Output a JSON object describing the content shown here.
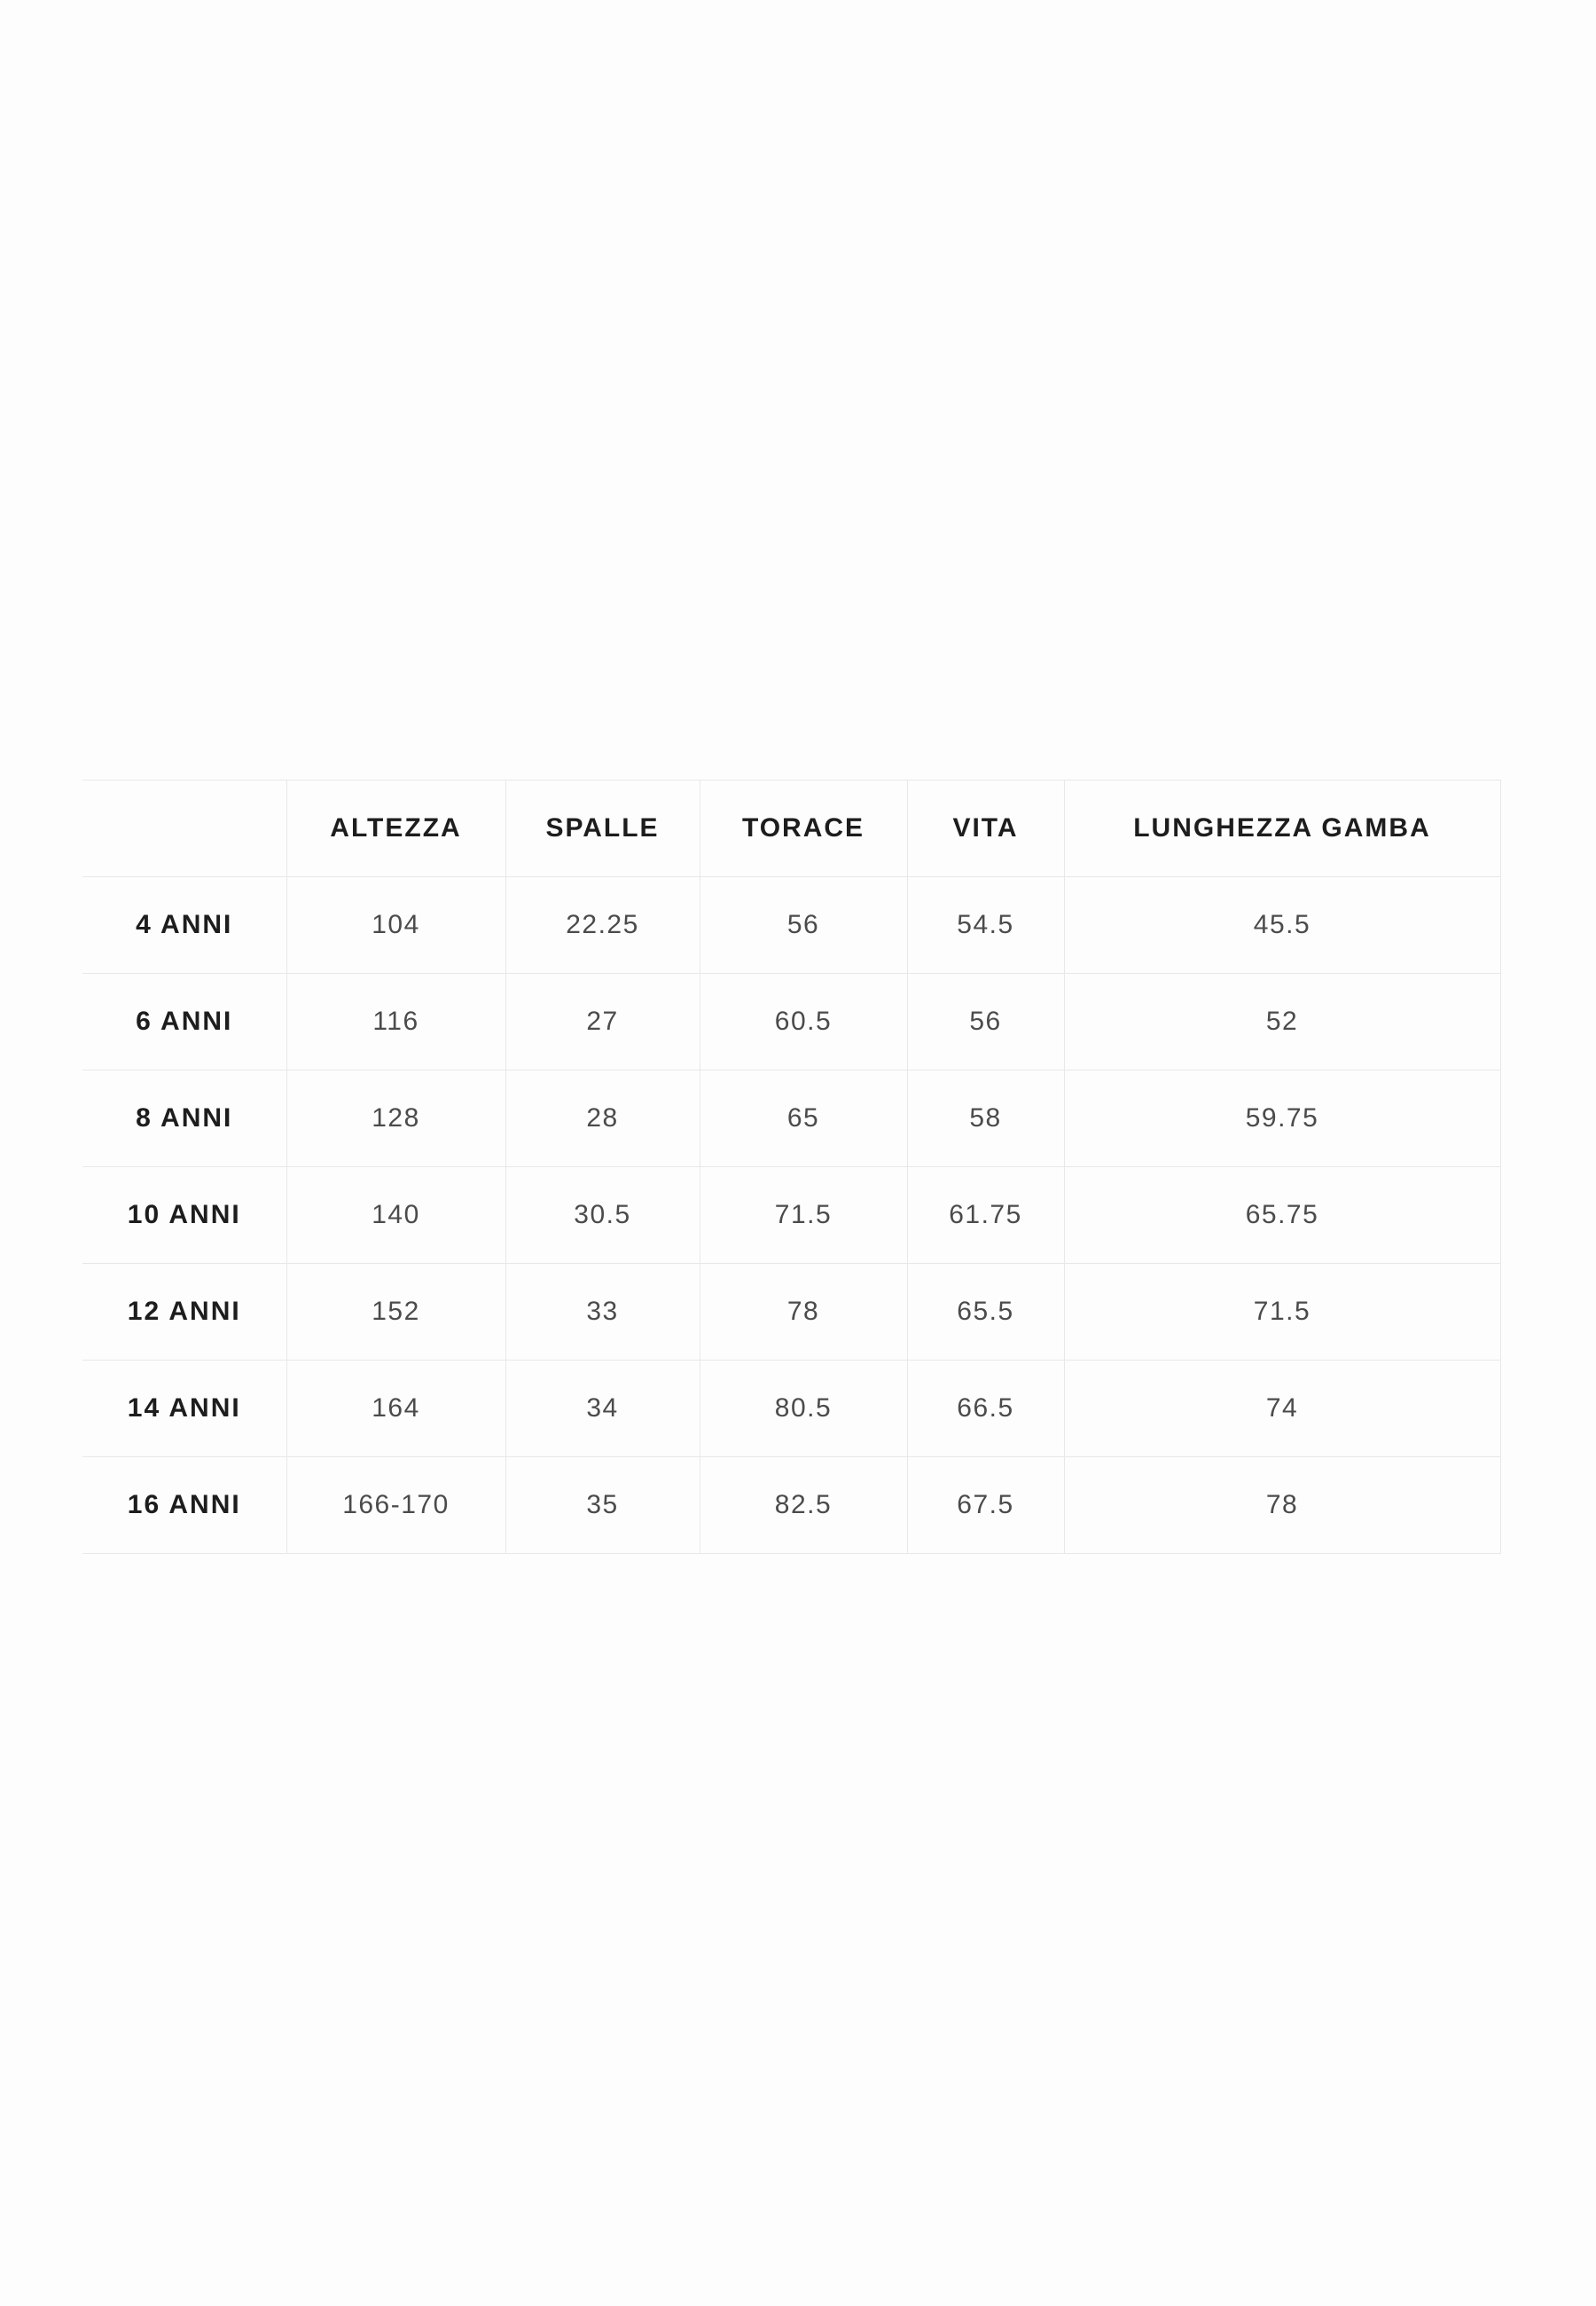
{
  "table": {
    "columns": [
      "",
      "ALTEZZA",
      "SPALLE",
      "TORACE",
      "VITA",
      "LUNGHEZZA GAMBA"
    ],
    "rows": [
      {
        "label": "4 ANNI",
        "values": [
          "104",
          "22.25",
          "56",
          "54.5",
          "45.5"
        ]
      },
      {
        "label": "6 ANNI",
        "values": [
          "116",
          "27",
          "60.5",
          "56",
          "52"
        ]
      },
      {
        "label": "8 ANNI",
        "values": [
          "128",
          "28",
          "65",
          "58",
          "59.75"
        ]
      },
      {
        "label": "10 ANNI",
        "values": [
          "140",
          "30.5",
          "71.5",
          "61.75",
          "65.75"
        ]
      },
      {
        "label": "12 ANNI",
        "values": [
          "152",
          "33",
          "78",
          "65.5",
          "71.5"
        ]
      },
      {
        "label": "14 ANNI",
        "values": [
          "164",
          "34",
          "80.5",
          "66.5",
          "74"
        ]
      },
      {
        "label": "16 ANNI",
        "values": [
          "166-170",
          "35",
          "82.5",
          "67.5",
          "78"
        ]
      }
    ]
  },
  "colors": {
    "background": "#fdfdfd",
    "border": "#e8e8e8",
    "header_text": "#1d1d1d",
    "value_text": "#4b4b4b"
  }
}
